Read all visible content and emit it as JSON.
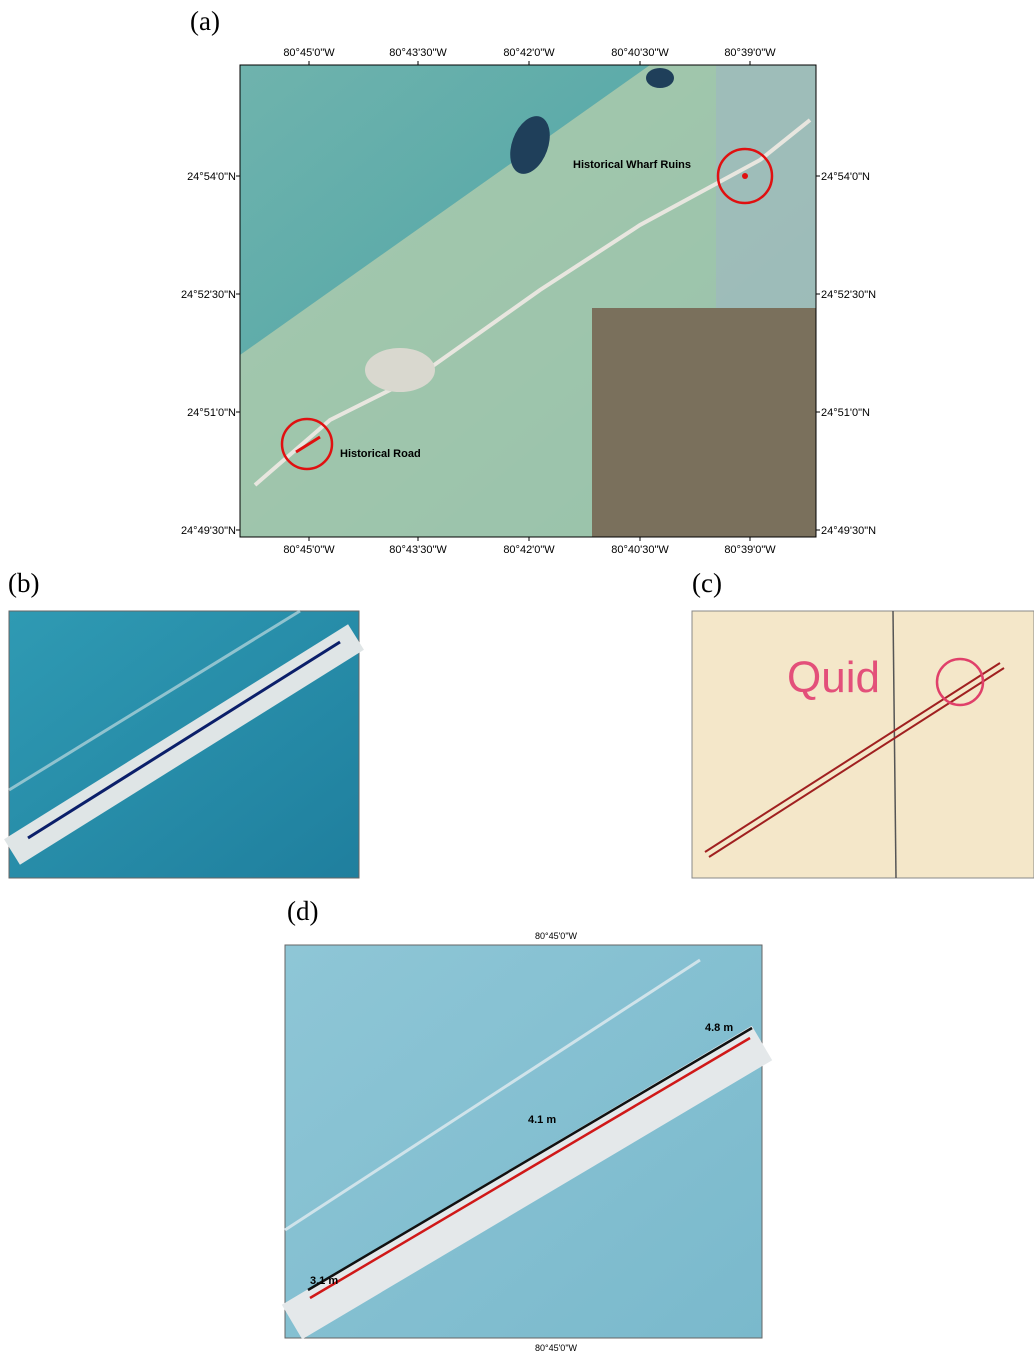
{
  "panel_labels": [
    "(a)",
    "(b)",
    "(c)",
    "(d)"
  ],
  "map_a": {
    "longitudes": [
      "80°45'0\"W",
      "80°43'30\"W",
      "80°42'0\"W",
      "80°40'30\"W",
      "80°39'0\"W"
    ],
    "latitudes": [
      "24°54'0\"N",
      "24°52'30\"N",
      "24°51'0\"N",
      "24°49'30\"N"
    ],
    "annotations": [
      "Historical Wharf Ruins",
      "Historical Road"
    ]
  },
  "map_c": {
    "annotation": "Quid"
  },
  "map_d": {
    "longitude": "80°45'0\"W",
    "measurements": [
      "4.8 m",
      "4.1 m",
      "3.1 m"
    ]
  }
}
